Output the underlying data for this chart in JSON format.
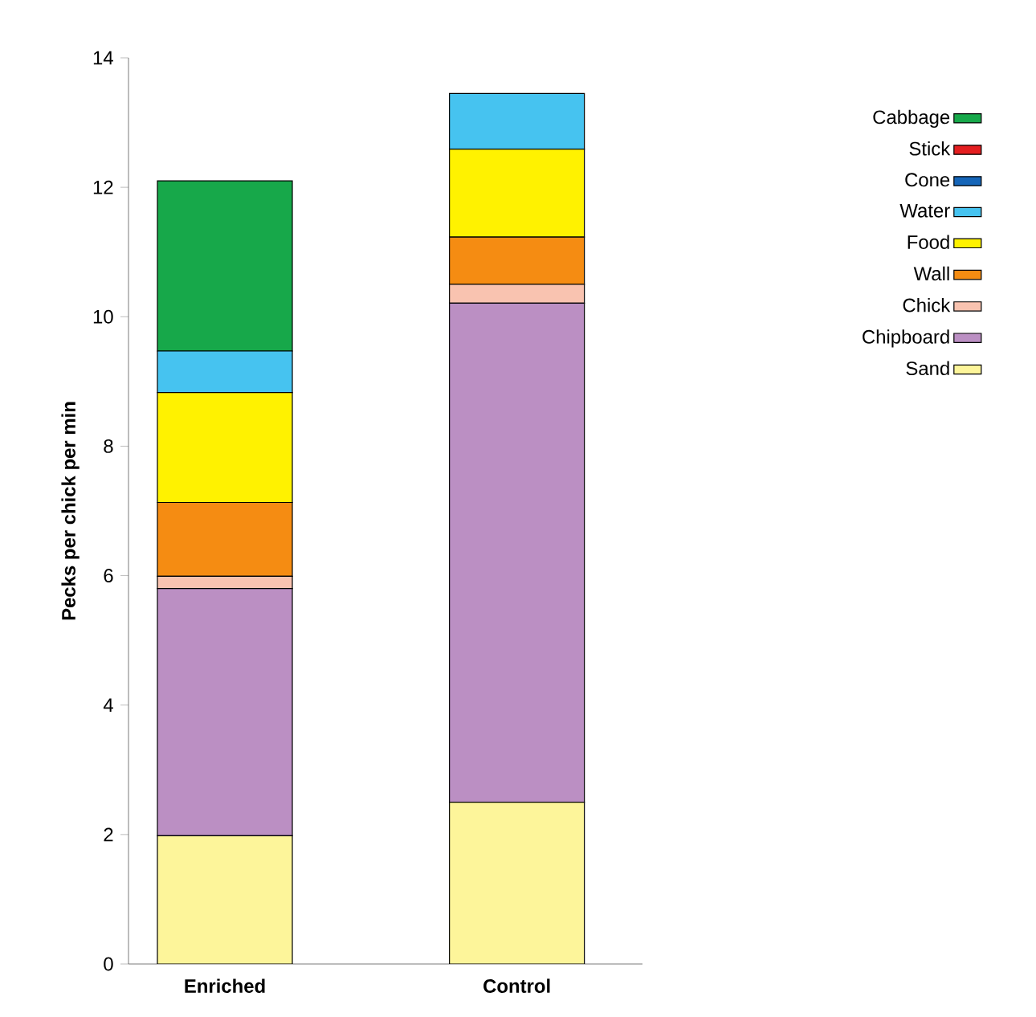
{
  "chart_data": {
    "type": "bar",
    "stacked": true,
    "ylabel": "Pecks per chick per min",
    "categories": [
      "Enriched",
      "Control"
    ],
    "series": [
      {
        "name": "Sand",
        "color": "#fdf59a",
        "values": [
          1.98,
          2.5
        ]
      },
      {
        "name": "Chipboard",
        "color": "#bb8fc3",
        "values": [
          3.82,
          7.71
        ]
      },
      {
        "name": "Chick",
        "color": "#f9c3b0",
        "values": [
          0.19,
          0.29
        ]
      },
      {
        "name": "Wall",
        "color": "#f58c12",
        "values": [
          1.14,
          0.73
        ]
      },
      {
        "name": "Food",
        "color": "#fff200",
        "values": [
          1.7,
          1.36
        ]
      },
      {
        "name": "Water",
        "color": "#46c3f0",
        "values": [
          0.64,
          0.86
        ]
      },
      {
        "name": "Cone",
        "color": "#1565b8",
        "values": [
          0,
          0
        ]
      },
      {
        "name": "Stick",
        "color": "#e41e20",
        "values": [
          0,
          0
        ]
      },
      {
        "name": "Cabbage",
        "color": "#17a84a",
        "values": [
          2.63,
          0
        ]
      }
    ],
    "ylim": [
      0,
      14
    ],
    "yticks": [
      0,
      2,
      4,
      6,
      8,
      10,
      12,
      14
    ],
    "legend": "right",
    "grid": false
  }
}
